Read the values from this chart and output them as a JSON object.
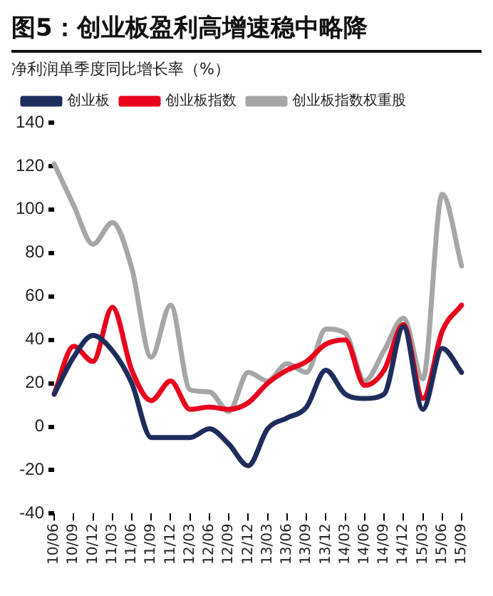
{
  "chart_data": {
    "type": "line",
    "title": "图5：创业板盈利高增速稳中略降",
    "ylabel": "净利润单季度同比增长率（%）",
    "categories": [
      "10/06",
      "10/09",
      "10/12",
      "11/03",
      "11/06",
      "11/09",
      "11/12",
      "12/03",
      "12/06",
      "12/09",
      "12/12",
      "13/03",
      "13/06",
      "13/09",
      "13/12",
      "14/03",
      "14/06",
      "14/09",
      "14/12",
      "15/03",
      "15/06",
      "15/09"
    ],
    "series": [
      {
        "name": "创业板",
        "color": "#1f2d5c",
        "values": [
          15,
          32,
          42,
          35,
          20,
          -5,
          -5,
          -5,
          -1,
          -8,
          -18,
          -1,
          4,
          9,
          26,
          15,
          13,
          15,
          46,
          8,
          36,
          25
        ]
      },
      {
        "name": "创业板指数",
        "color": "#e8001c",
        "values": [
          15,
          37,
          30,
          55,
          26,
          12,
          21,
          8,
          9,
          8,
          11,
          20,
          26,
          30,
          38,
          40,
          19,
          26,
          47,
          13,
          44,
          56
        ]
      },
      {
        "name": "创业板指数权重股",
        "color": "#a6a6a6",
        "values": [
          121,
          102,
          84,
          94,
          73,
          32,
          56,
          17,
          16,
          7,
          25,
          21,
          29,
          25,
          45,
          43,
          21,
          35,
          50,
          22,
          107,
          74
        ]
      }
    ],
    "ylim": [
      -40,
      140
    ],
    "yticks": [
      -40,
      -20,
      0,
      20,
      40,
      60,
      80,
      100,
      120,
      140
    ],
    "grid": false,
    "legend": "top left",
    "marker": "none",
    "line_style": "solid"
  }
}
